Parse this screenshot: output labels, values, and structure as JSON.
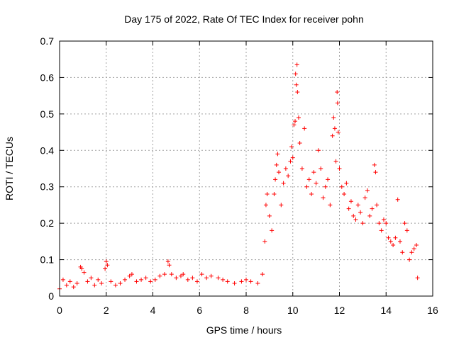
{
  "chart_data": {
    "type": "scatter",
    "title": "Day 175 of 2022, Rate Of TEC Index for receiver pohn",
    "xlabel": "GPS time / hours",
    "ylabel": "ROTI / TECUs",
    "xlim": [
      0,
      16
    ],
    "ylim": [
      0,
      0.7
    ],
    "x_ticks": [
      0,
      2,
      4,
      6,
      8,
      10,
      12,
      14,
      16
    ],
    "x_tick_labels": [
      "0",
      "2",
      "4",
      "6",
      "8",
      "10",
      "12",
      "14",
      "16"
    ],
    "y_ticks": [
      0,
      0.1,
      0.2,
      0.3,
      0.4,
      0.5,
      0.6,
      0.7
    ],
    "y_tick_labels": [
      "0",
      "0.1",
      "0.2",
      "0.3",
      "0.4",
      "0.5",
      "0.6",
      "0.7"
    ],
    "grid": true,
    "marker": "plus",
    "color": "#ff0000",
    "series": [
      {
        "name": "ROTI",
        "points": [
          [
            0.0,
            0.02
          ],
          [
            0.15,
            0.045
          ],
          [
            0.3,
            0.03
          ],
          [
            0.45,
            0.04
          ],
          [
            0.6,
            0.025
          ],
          [
            0.75,
            0.035
          ],
          [
            0.9,
            0.08
          ],
          [
            0.95,
            0.075
          ],
          [
            1.05,
            0.065
          ],
          [
            1.2,
            0.04
          ],
          [
            1.35,
            0.05
          ],
          [
            1.5,
            0.03
          ],
          [
            1.65,
            0.045
          ],
          [
            1.8,
            0.035
          ],
          [
            1.95,
            0.075
          ],
          [
            2.0,
            0.095
          ],
          [
            2.05,
            0.085
          ],
          [
            2.2,
            0.04
          ],
          [
            2.4,
            0.03
          ],
          [
            2.6,
            0.035
          ],
          [
            2.8,
            0.045
          ],
          [
            3.0,
            0.055
          ],
          [
            3.1,
            0.06
          ],
          [
            3.3,
            0.04
          ],
          [
            3.5,
            0.045
          ],
          [
            3.7,
            0.05
          ],
          [
            3.9,
            0.04
          ],
          [
            4.1,
            0.045
          ],
          [
            4.3,
            0.055
          ],
          [
            4.5,
            0.06
          ],
          [
            4.65,
            0.095
          ],
          [
            4.7,
            0.085
          ],
          [
            4.8,
            0.06
          ],
          [
            5.0,
            0.05
          ],
          [
            5.2,
            0.055
          ],
          [
            5.3,
            0.06
          ],
          [
            5.5,
            0.045
          ],
          [
            5.7,
            0.05
          ],
          [
            5.9,
            0.04
          ],
          [
            6.1,
            0.06
          ],
          [
            6.3,
            0.05
          ],
          [
            6.5,
            0.055
          ],
          [
            6.8,
            0.05
          ],
          [
            7.0,
            0.045
          ],
          [
            7.2,
            0.04
          ],
          [
            7.5,
            0.035
          ],
          [
            7.8,
            0.04
          ],
          [
            8.0,
            0.045
          ],
          [
            8.2,
            0.04
          ],
          [
            8.5,
            0.035
          ],
          [
            8.7,
            0.06
          ],
          [
            8.8,
            0.15
          ],
          [
            8.85,
            0.25
          ],
          [
            8.9,
            0.28
          ],
          [
            9.0,
            0.22
          ],
          [
            9.1,
            0.18
          ],
          [
            9.2,
            0.28
          ],
          [
            9.25,
            0.32
          ],
          [
            9.3,
            0.36
          ],
          [
            9.35,
            0.39
          ],
          [
            9.4,
            0.34
          ],
          [
            9.5,
            0.25
          ],
          [
            9.6,
            0.31
          ],
          [
            9.7,
            0.35
          ],
          [
            9.8,
            0.33
          ],
          [
            9.9,
            0.37
          ],
          [
            9.95,
            0.41
          ],
          [
            10.0,
            0.38
          ],
          [
            10.05,
            0.47
          ],
          [
            10.1,
            0.48
          ],
          [
            10.12,
            0.61
          ],
          [
            10.15,
            0.58
          ],
          [
            10.18,
            0.635
          ],
          [
            10.2,
            0.56
          ],
          [
            10.25,
            0.49
          ],
          [
            10.3,
            0.42
          ],
          [
            10.4,
            0.35
          ],
          [
            10.5,
            0.46
          ],
          [
            10.6,
            0.3
          ],
          [
            10.7,
            0.32
          ],
          [
            10.8,
            0.28
          ],
          [
            10.9,
            0.34
          ],
          [
            11.0,
            0.31
          ],
          [
            11.1,
            0.4
          ],
          [
            11.2,
            0.35
          ],
          [
            11.3,
            0.27
          ],
          [
            11.4,
            0.3
          ],
          [
            11.5,
            0.32
          ],
          [
            11.6,
            0.25
          ],
          [
            11.7,
            0.44
          ],
          [
            11.75,
            0.49
          ],
          [
            11.8,
            0.46
          ],
          [
            11.85,
            0.37
          ],
          [
            11.9,
            0.56
          ],
          [
            11.92,
            0.53
          ],
          [
            11.95,
            0.45
          ],
          [
            12.0,
            0.35
          ],
          [
            12.1,
            0.3
          ],
          [
            12.2,
            0.28
          ],
          [
            12.3,
            0.31
          ],
          [
            12.4,
            0.24
          ],
          [
            12.5,
            0.26
          ],
          [
            12.6,
            0.22
          ],
          [
            12.7,
            0.21
          ],
          [
            12.8,
            0.25
          ],
          [
            12.9,
            0.23
          ],
          [
            13.0,
            0.2
          ],
          [
            13.1,
            0.27
          ],
          [
            13.2,
            0.29
          ],
          [
            13.3,
            0.22
          ],
          [
            13.4,
            0.24
          ],
          [
            13.5,
            0.36
          ],
          [
            13.55,
            0.34
          ],
          [
            13.6,
            0.25
          ],
          [
            13.7,
            0.2
          ],
          [
            13.8,
            0.18
          ],
          [
            13.9,
            0.21
          ],
          [
            14.0,
            0.2
          ],
          [
            14.1,
            0.16
          ],
          [
            14.2,
            0.15
          ],
          [
            14.3,
            0.14
          ],
          [
            14.4,
            0.16
          ],
          [
            14.5,
            0.265
          ],
          [
            14.6,
            0.15
          ],
          [
            14.7,
            0.12
          ],
          [
            14.8,
            0.2
          ],
          [
            14.9,
            0.18
          ],
          [
            15.0,
            0.1
          ],
          [
            15.1,
            0.12
          ],
          [
            15.2,
            0.13
          ],
          [
            15.3,
            0.14
          ],
          [
            15.35,
            0.05
          ]
        ]
      }
    ]
  }
}
